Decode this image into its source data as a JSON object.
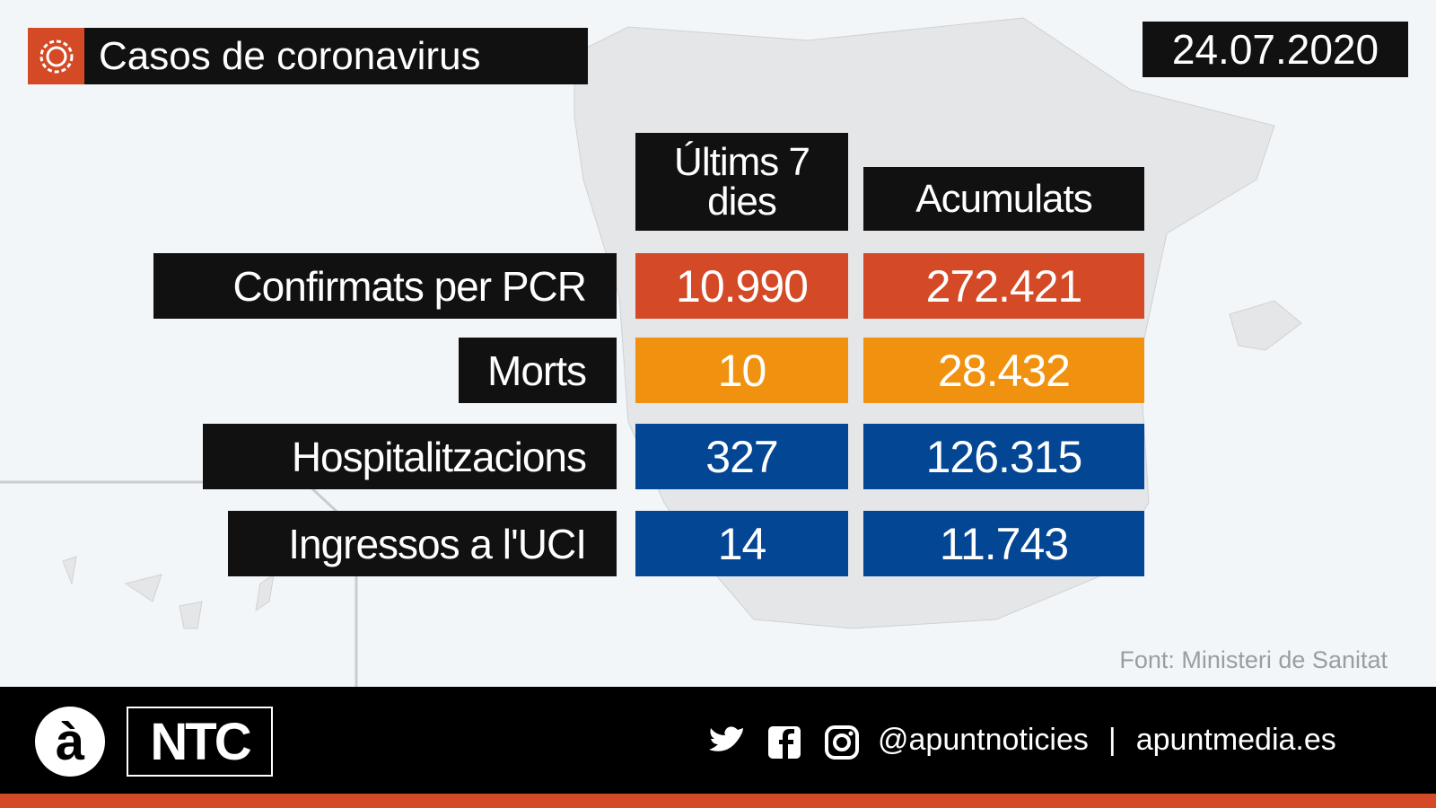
{
  "header": {
    "title": "Casos de coronavirus",
    "date": "24.07.2020"
  },
  "table": {
    "columns": [
      "Últims 7 dies",
      "Acumulats"
    ],
    "rows": [
      {
        "label": "Confirmats per PCR",
        "last7": "10.990",
        "total": "272.421",
        "color": "#d44a26"
      },
      {
        "label": "Morts",
        "last7": "10",
        "total": "28.432",
        "color": "#f0920f"
      },
      {
        "label": "Hospitalitzacions",
        "last7": "327",
        "total": "126.315",
        "color": "#034694"
      },
      {
        "label": "Ingressos a l'UCI",
        "last7": "14",
        "total": "11.743",
        "color": "#034694"
      }
    ]
  },
  "source": "Font: Ministeri de Sanitat",
  "footer": {
    "logo": "à",
    "brand": "NTC",
    "handle": "@apuntnoticies",
    "separator": "|",
    "website": "apuntmedia.es"
  }
}
